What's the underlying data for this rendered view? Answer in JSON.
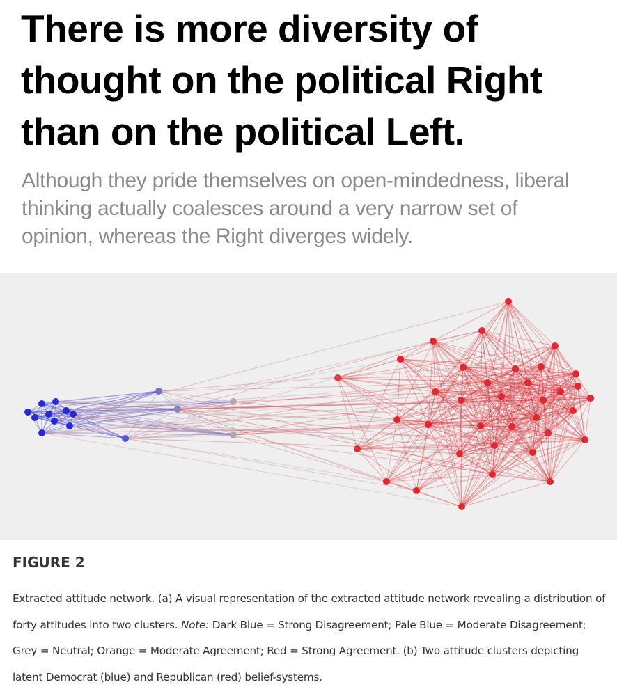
{
  "headline": "There is more diversity of thought on the political Right than on the political Left.",
  "subheadline": "Although they pride themselves on open-mindedness, liberal thinking actually coalesces around a very narrow set of opinion, whereas the Right diverges widely.",
  "figure": {
    "label": "FIGURE 2",
    "caption": [
      "Extracted attitude network. (a) A visual representation of the extracted attitude network revealing a distribution of forty attitudes into two clusters. ",
      "Note:",
      " Dark Blue = Strong Disagreement; Pale Blue = Moderate Disagreement; Grey = Neutral; Orange = Moderate Agreement; Red = Strong Agreement. (b) Two attitude clusters depicting latent Democrat (blue) and Republican (red) belief-systems."
    ]
  }
}
